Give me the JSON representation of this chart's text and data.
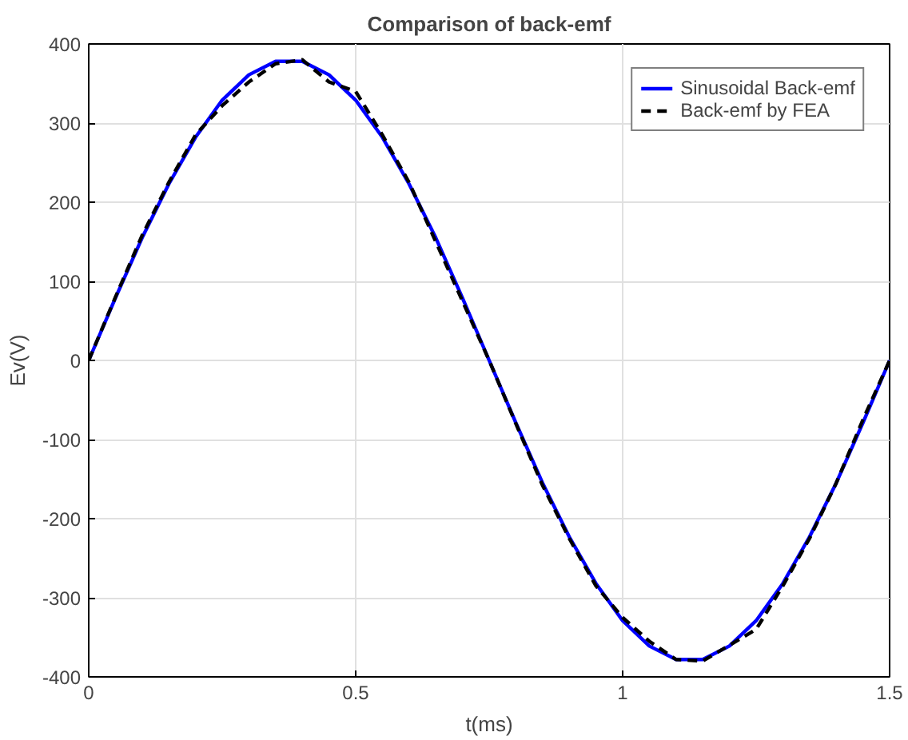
{
  "chart_data": {
    "type": "line",
    "title": "Comparison of back-emf",
    "xlabel": "t(ms)",
    "ylabel": "Ev(V)",
    "x": [
      0,
      0.05,
      0.1,
      0.15,
      0.2,
      0.25,
      0.3,
      0.35,
      0.4,
      0.45,
      0.5,
      0.55,
      0.6,
      0.65,
      0.7,
      0.75,
      0.8,
      0.85,
      0.9,
      0.95,
      1,
      1.05,
      1.1,
      1.15,
      1.2,
      1.25,
      1.3,
      1.35,
      1.4,
      1.45,
      1.5
    ],
    "series": [
      {
        "name": "Sinusoidal Back-emf",
        "color": "#0000ff",
        "line_style": "solid",
        "values": [
          0,
          79,
          155,
          223,
          282,
          329,
          361,
          378,
          378,
          361,
          329,
          282,
          223,
          155,
          79,
          0,
          -79,
          -155,
          -223,
          -282,
          -329,
          -361,
          -378,
          -378,
          -361,
          -329,
          -282,
          -223,
          -155,
          -79,
          0
        ]
      },
      {
        "name": "Back-emf by FEA",
        "color": "#000000",
        "line_style": "dashed",
        "values": [
          0,
          80,
          158,
          225,
          285,
          322,
          352,
          375,
          380,
          352,
          340,
          285,
          225,
          150,
          75,
          0,
          -80,
          -158,
          -225,
          -285,
          -325,
          -355,
          -378,
          -380,
          -360,
          -340,
          -285,
          -225,
          -155,
          -75,
          0
        ]
      }
    ],
    "xlim": [
      0,
      1.5
    ],
    "xticks": [
      0,
      0.5,
      1,
      1.5
    ],
    "ylim": [
      -400,
      400
    ],
    "yticks": [
      -400,
      -300,
      -200,
      -100,
      0,
      100,
      200,
      300,
      400
    ],
    "grid": true,
    "legend": "top right"
  }
}
